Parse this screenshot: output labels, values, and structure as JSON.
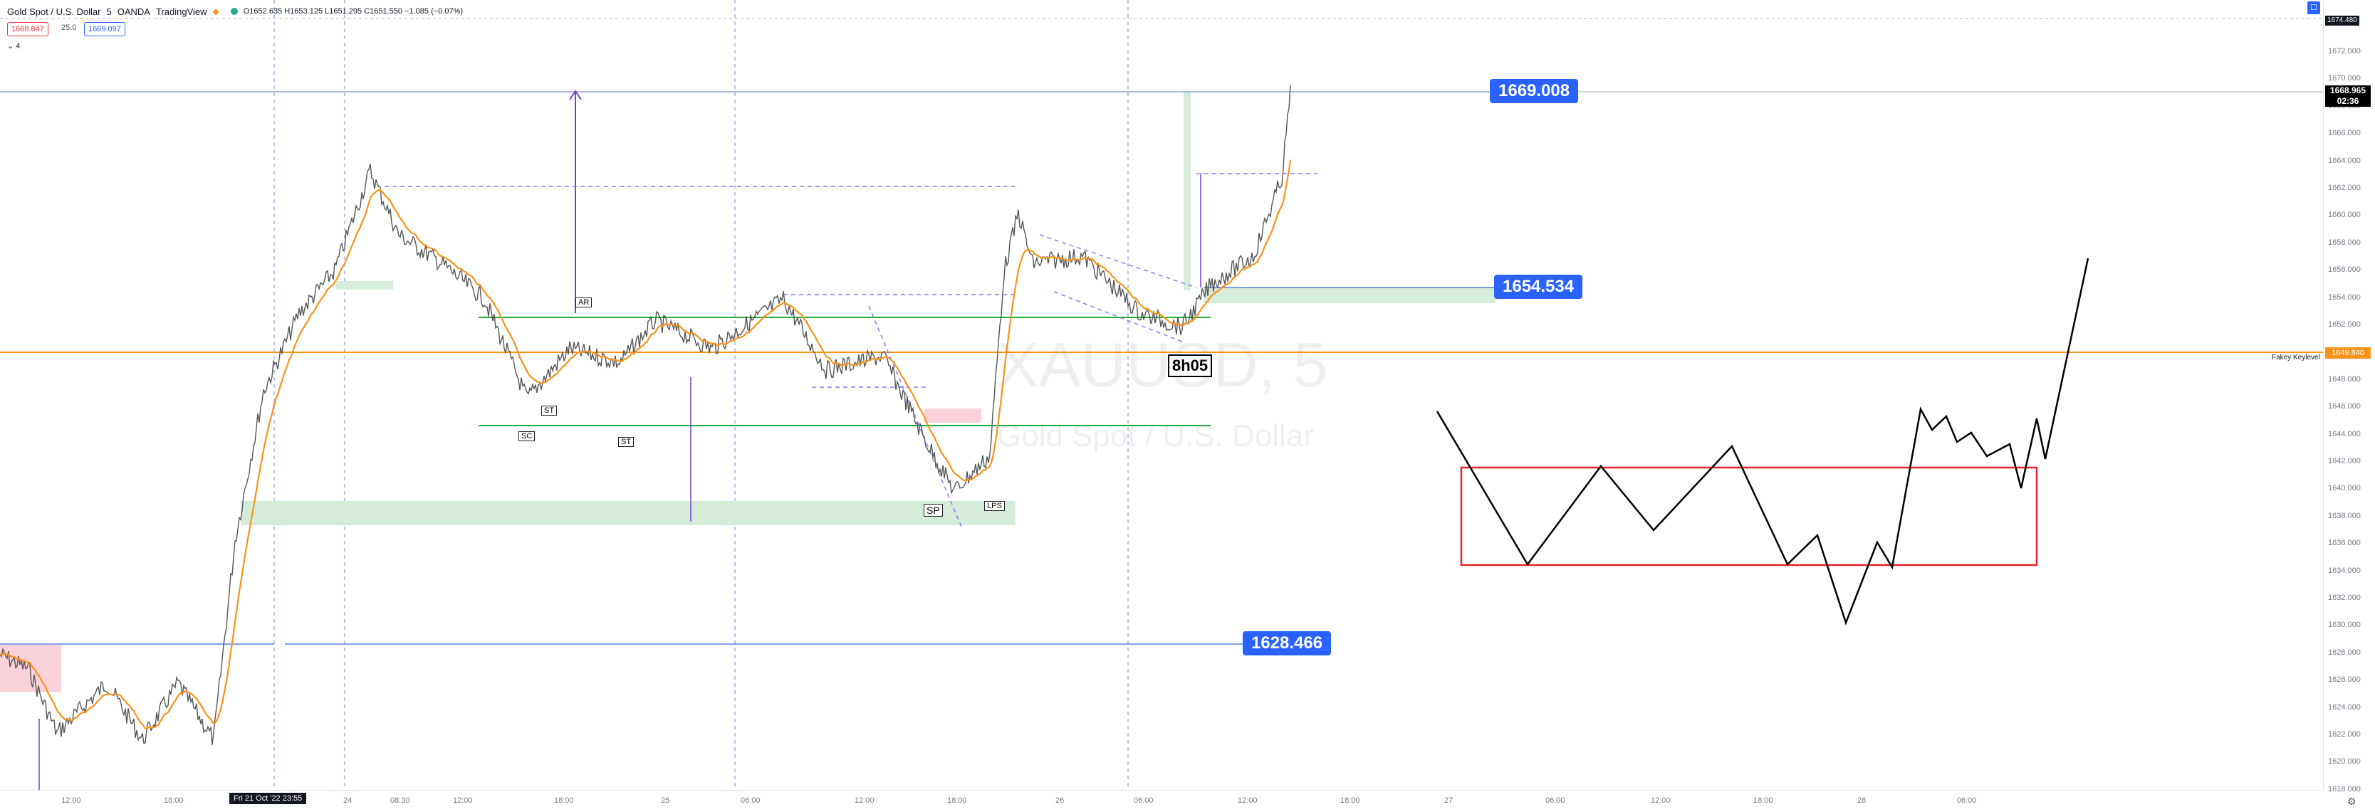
{
  "header": {
    "symbol": "Gold Spot / U.S. Dollar",
    "interval": "5",
    "broker": "OANDA",
    "platform": "TradingView",
    "ohlc": "O1652.635  H1653.125  L1651.295  C1651.550  −1.085 (−0.07%)"
  },
  "trade": {
    "sell": "1668.847",
    "spread": "25.0",
    "buy": "1669.097"
  },
  "indicators": {
    "count": "4"
  },
  "levels": {
    "top": "1669.008",
    "mid": "1654.534",
    "low": "1628.466"
  },
  "price_axis": {
    "ticks": [
      "1672.000",
      "1670.000",
      "1668.000",
      "1666.000",
      "1664.000",
      "1662.000",
      "1660.000",
      "1658.000",
      "1656.000",
      "1654.000",
      "1652.000",
      "1650.000",
      "1648.000",
      "1646.000",
      "1644.000",
      "1642.000",
      "1640.000",
      "1638.000",
      "1636.000",
      "1634.000",
      "1632.000",
      "1630.000",
      "1628.000",
      "1626.000",
      "1624.000",
      "1622.000",
      "1620.000",
      "1618.000"
    ],
    "current_price": "1668.965",
    "countdown": "02:36",
    "key_level_price": "1649.840",
    "key_level_label": "Fakey Keylevel",
    "top_marker": "1674.480"
  },
  "time_axis": {
    "ticks": [
      "12:00",
      "18:00",
      "24",
      "08:30",
      "12:00",
      "18:00",
      "25",
      "06:00",
      "12:00",
      "18:00",
      "26",
      "06:00",
      "12:00",
      "18:00",
      "27",
      "06:00",
      "12:00",
      "18:00",
      "28",
      "06:00"
    ],
    "crosshair_date": "Fri 21 Oct '22   23:55"
  },
  "annotations": {
    "sc": "SC",
    "st1": "ST",
    "st2": "ST",
    "ar": "AR",
    "sp": "SP",
    "lps": "LPS",
    "timer": "8h05"
  },
  "watermark": {
    "ticker": "XAUUSD, 5",
    "name": "Gold Spot / U.S. Dollar"
  },
  "colors": {
    "label_blue": "#2962ff",
    "ema": "#f7931a",
    "zone_green": "#d6ecda",
    "zone_pink": "#fbd1da",
    "support_green": "#22ab3a",
    "projection_box": "#e6202a"
  }
}
